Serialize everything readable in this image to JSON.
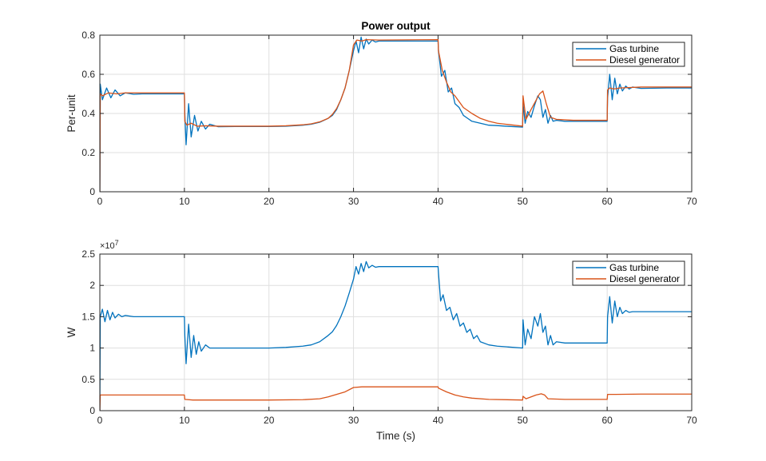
{
  "chart_data": [
    {
      "type": "line",
      "title": "Power output",
      "xlabel": "",
      "ylabel": "Per-unit",
      "xlim": [
        0,
        70
      ],
      "ylim": [
        0,
        0.8
      ],
      "xticks": [
        0,
        10,
        20,
        30,
        40,
        50,
        60,
        70
      ],
      "yticks": [
        0,
        0.2,
        0.4,
        0.6,
        0.8
      ],
      "xtick_labels": [
        "0",
        "10",
        "20",
        "30",
        "40",
        "50",
        "60",
        "70"
      ],
      "ytick_labels": [
        "0",
        "0.2",
        "0.4",
        "0.6",
        "0.8"
      ],
      "grid": true,
      "legend_position": "top-right",
      "series": [
        {
          "name": "Gas turbine",
          "color": "#0072BD",
          "x": [
            0,
            0.05,
            0.3,
            0.8,
            1.3,
            1.8,
            2.4,
            3,
            4,
            5,
            10,
            10.05,
            10.2,
            10.5,
            10.8,
            11.2,
            11.6,
            12,
            12.5,
            13,
            14,
            16,
            20,
            22,
            24,
            25,
            26,
            27,
            27.5,
            28,
            28.5,
            29,
            29.5,
            30,
            30.3,
            30.6,
            30.9,
            31.2,
            31.5,
            31.8,
            32.2,
            32.6,
            33,
            35,
            38,
            40,
            40.05,
            40.4,
            40.8,
            41.2,
            41.6,
            42,
            42.5,
            43,
            43.5,
            44,
            44.5,
            45,
            46,
            47,
            48,
            50,
            50.05,
            50.3,
            50.6,
            51,
            51.4,
            51.8,
            52.1,
            52.4,
            52.7,
            53,
            53.3,
            53.6,
            54,
            55,
            58,
            60,
            60.05,
            60.3,
            60.6,
            60.9,
            61.2,
            61.5,
            61.8,
            62.2,
            62.6,
            63,
            64,
            67,
            70
          ],
          "y": [
            0.0,
            0.55,
            0.47,
            0.53,
            0.48,
            0.52,
            0.49,
            0.505,
            0.498,
            0.5,
            0.5,
            0.4,
            0.24,
            0.45,
            0.28,
            0.39,
            0.31,
            0.36,
            0.32,
            0.345,
            0.332,
            0.333,
            0.333,
            0.335,
            0.34,
            0.345,
            0.355,
            0.375,
            0.39,
            0.42,
            0.47,
            0.53,
            0.62,
            0.72,
            0.77,
            0.71,
            0.79,
            0.73,
            0.78,
            0.755,
            0.775,
            0.765,
            0.77,
            0.77,
            0.77,
            0.77,
            0.72,
            0.59,
            0.62,
            0.51,
            0.53,
            0.45,
            0.43,
            0.39,
            0.375,
            0.36,
            0.355,
            0.35,
            0.34,
            0.338,
            0.335,
            0.33,
            0.45,
            0.35,
            0.41,
            0.38,
            0.44,
            0.49,
            0.47,
            0.38,
            0.42,
            0.35,
            0.39,
            0.36,
            0.365,
            0.36,
            0.36,
            0.36,
            0.48,
            0.6,
            0.47,
            0.58,
            0.5,
            0.55,
            0.515,
            0.54,
            0.525,
            0.535,
            0.528,
            0.53,
            0.53
          ]
        },
        {
          "name": "Diesel generator",
          "color": "#D95319",
          "x": [
            0,
            0.05,
            0.3,
            1,
            2,
            3,
            5,
            10,
            10.05,
            10.3,
            10.8,
            11.5,
            12.5,
            14,
            20,
            22,
            24,
            25,
            26,
            27,
            27.5,
            28,
            28.5,
            29,
            29.5,
            30,
            30.4,
            31,
            31.5,
            33,
            40,
            40.05,
            40.5,
            41,
            41.5,
            42,
            43,
            44,
            45,
            46,
            47,
            48,
            50,
            50.05,
            50.4,
            51,
            51.5,
            52,
            52.4,
            52.8,
            53.3,
            54,
            56,
            60,
            60.05,
            60.3,
            60.8,
            61.5,
            62.5,
            64,
            70
          ],
          "y": [
            0.0,
            0.5,
            0.49,
            0.505,
            0.5,
            0.505,
            0.505,
            0.505,
            0.36,
            0.34,
            0.35,
            0.335,
            0.337,
            0.335,
            0.335,
            0.337,
            0.342,
            0.347,
            0.357,
            0.375,
            0.395,
            0.425,
            0.47,
            0.53,
            0.62,
            0.75,
            0.775,
            0.77,
            0.777,
            0.775,
            0.777,
            0.72,
            0.62,
            0.56,
            0.51,
            0.49,
            0.43,
            0.4,
            0.375,
            0.36,
            0.35,
            0.345,
            0.335,
            0.49,
            0.37,
            0.42,
            0.46,
            0.5,
            0.515,
            0.45,
            0.38,
            0.37,
            0.365,
            0.365,
            0.52,
            0.53,
            0.525,
            0.53,
            0.532,
            0.535,
            0.535
          ]
        }
      ]
    },
    {
      "type": "line",
      "title": "",
      "xlabel": "Time (s)",
      "ylabel": "W",
      "exponent_label": "×10",
      "exponent_power": "7",
      "xlim": [
        0,
        70
      ],
      "ylim": [
        0,
        2.5
      ],
      "xticks": [
        0,
        10,
        20,
        30,
        40,
        50,
        60,
        70
      ],
      "yticks": [
        0,
        0.5,
        1,
        1.5,
        2,
        2.5
      ],
      "xtick_labels": [
        "0",
        "10",
        "20",
        "30",
        "40",
        "50",
        "60",
        "70"
      ],
      "ytick_labels": [
        "0",
        "0.5",
        "1",
        "1.5",
        "2",
        "2.5"
      ],
      "grid": true,
      "legend_position": "top-right",
      "series": [
        {
          "name": "Gas turbine",
          "color": "#0072BD",
          "x": [
            0,
            0.05,
            0.3,
            0.6,
            0.9,
            1.2,
            1.5,
            1.8,
            2.2,
            2.6,
            3,
            4,
            5,
            10,
            10.05,
            10.2,
            10.5,
            10.8,
            11.1,
            11.4,
            11.7,
            12,
            12.5,
            13,
            14,
            16,
            20,
            22,
            24,
            25,
            26,
            27,
            27.5,
            28,
            28.5,
            29,
            29.5,
            30,
            30.3,
            30.6,
            30.9,
            31.2,
            31.5,
            31.8,
            32.2,
            32.6,
            33,
            35,
            38,
            40,
            40.05,
            40.3,
            40.6,
            41,
            41.4,
            41.8,
            42.2,
            42.6,
            43,
            43.4,
            43.8,
            44.2,
            44.6,
            45,
            46,
            47,
            48,
            50,
            50.05,
            50.3,
            50.6,
            51,
            51.4,
            51.8,
            52.1,
            52.4,
            52.7,
            53,
            53.3,
            53.6,
            54,
            55,
            58,
            60,
            60.05,
            60.3,
            60.6,
            60.9,
            61.2,
            61.5,
            61.8,
            62.2,
            62.6,
            63,
            64,
            67,
            70
          ],
          "y": [
            0.0,
            1.5,
            1.62,
            1.42,
            1.6,
            1.45,
            1.57,
            1.48,
            1.54,
            1.5,
            1.52,
            1.5,
            1.5,
            1.5,
            1.2,
            0.75,
            1.38,
            0.85,
            1.2,
            0.9,
            1.1,
            0.95,
            1.05,
            1.0,
            1.0,
            1.0,
            1.0,
            1.01,
            1.03,
            1.05,
            1.1,
            1.2,
            1.26,
            1.36,
            1.5,
            1.67,
            1.88,
            2.1,
            2.3,
            2.18,
            2.35,
            2.22,
            2.38,
            2.28,
            2.32,
            2.29,
            2.3,
            2.3,
            2.3,
            2.3,
            2.2,
            1.75,
            1.85,
            1.6,
            1.65,
            1.45,
            1.55,
            1.35,
            1.4,
            1.25,
            1.3,
            1.15,
            1.2,
            1.1,
            1.05,
            1.03,
            1.02,
            1.0,
            1.45,
            1.05,
            1.3,
            1.15,
            1.5,
            1.35,
            1.55,
            1.25,
            1.35,
            1.05,
            1.2,
            1.05,
            1.1,
            1.08,
            1.08,
            1.08,
            1.5,
            1.82,
            1.4,
            1.75,
            1.5,
            1.65,
            1.55,
            1.6,
            1.57,
            1.58,
            1.58,
            1.58,
            1.58
          ]
        },
        {
          "name": "Diesel generator",
          "color": "#D95319",
          "x": [
            0,
            0.05,
            2,
            5,
            10,
            10.05,
            11,
            14,
            20,
            24,
            26,
            27,
            28,
            29,
            30,
            31,
            33,
            40,
            40.05,
            41,
            42,
            43,
            44,
            46,
            50,
            50.05,
            50.4,
            51,
            51.6,
            52.2,
            52.6,
            53,
            55,
            60,
            60.05,
            61,
            64,
            70
          ],
          "y": [
            0.0,
            0.25,
            0.25,
            0.25,
            0.25,
            0.18,
            0.17,
            0.17,
            0.17,
            0.175,
            0.19,
            0.22,
            0.26,
            0.3,
            0.37,
            0.38,
            0.38,
            0.38,
            0.36,
            0.3,
            0.25,
            0.22,
            0.2,
            0.18,
            0.17,
            0.23,
            0.19,
            0.22,
            0.25,
            0.27,
            0.25,
            0.19,
            0.18,
            0.18,
            0.26,
            0.26,
            0.265,
            0.265
          ]
        }
      ]
    }
  ]
}
